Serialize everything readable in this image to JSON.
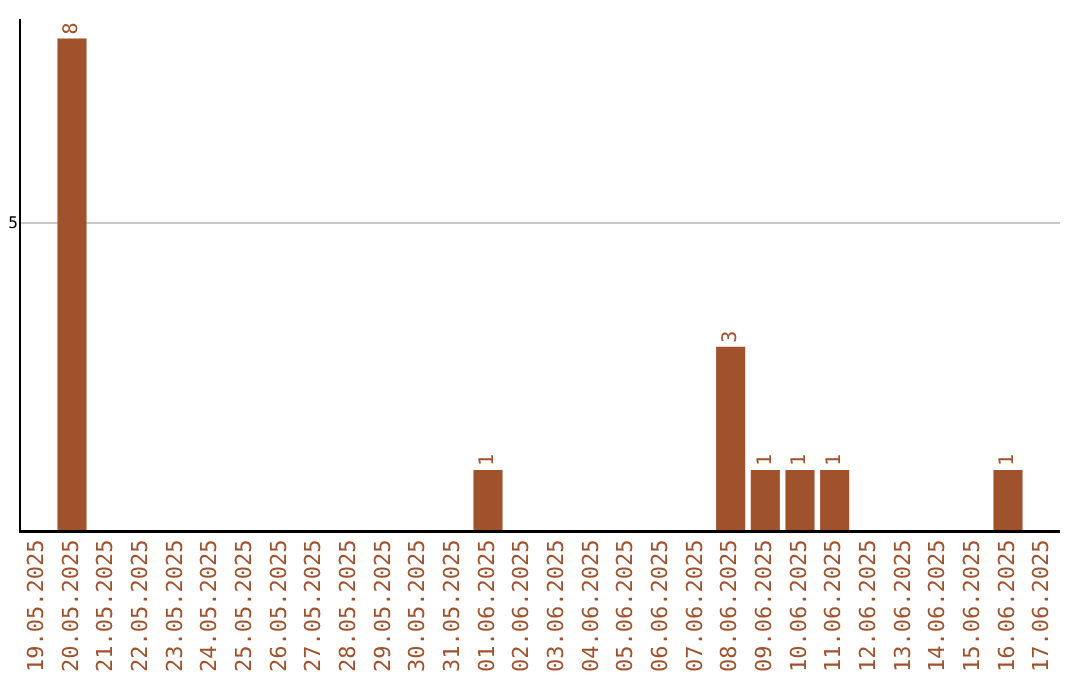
{
  "chart_data": {
    "type": "bar",
    "categories": [
      "19.05.2025",
      "20.05.2025",
      "21.05.2025",
      "22.05.2025",
      "23.05.2025",
      "24.05.2025",
      "25.05.2025",
      "26.05.2025",
      "27.05.2025",
      "28.05.2025",
      "29.05.2025",
      "30.05.2025",
      "31.05.2025",
      "01.06.2025",
      "02.06.2025",
      "03.06.2025",
      "04.06.2025",
      "05.06.2025",
      "06.06.2025",
      "07.06.2025",
      "08.06.2025",
      "09.06.2025",
      "10.06.2025",
      "11.06.2025",
      "12.06.2025",
      "13.06.2025",
      "14.06.2025",
      "15.06.2025",
      "16.06.2025",
      "17.06.2025"
    ],
    "values": [
      0,
      8,
      0,
      0,
      0,
      0,
      0,
      0,
      0,
      0,
      0,
      0,
      0,
      1,
      0,
      0,
      0,
      0,
      0,
      0,
      3,
      1,
      1,
      1,
      0,
      0,
      0,
      0,
      1,
      0
    ],
    "value_labels": [
      null,
      "8",
      null,
      null,
      null,
      null,
      null,
      null,
      null,
      null,
      null,
      null,
      null,
      "1",
      null,
      null,
      null,
      null,
      null,
      null,
      "3",
      "1",
      "1",
      "1",
      null,
      null,
      null,
      null,
      "1",
      null
    ],
    "color": "#a0522d",
    "ylim": [
      0,
      8.3
    ],
    "yticks": [
      5
    ],
    "grid": "y",
    "legend": false
  }
}
